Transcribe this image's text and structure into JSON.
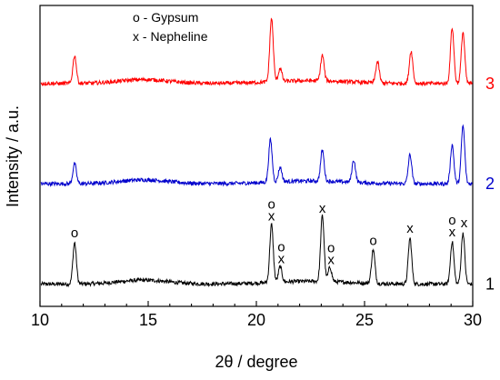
{
  "chart_data": {
    "type": "line",
    "title": "",
    "xlabel": "2θ / degree",
    "ylabel": "Intensity / a.u.",
    "xlim": [
      10,
      30
    ],
    "xticks": [
      10,
      15,
      20,
      25,
      30
    ],
    "yticks_shown": false,
    "grid": false,
    "legend": {
      "placement": "top-left",
      "entries": [
        "o - Gypsum",
        "x - Nepheline"
      ]
    },
    "series": [
      {
        "name": "1",
        "color": "#000000",
        "baseline": 0,
        "peaks": [
          {
            "x": 11.6,
            "h": 3.7
          },
          {
            "x": 20.7,
            "h": 5.2
          },
          {
            "x": 21.1,
            "h": 1.4
          },
          {
            "x": 23.05,
            "h": 5.9
          },
          {
            "x": 23.4,
            "h": 1.3
          },
          {
            "x": 25.4,
            "h": 3.0
          },
          {
            "x": 27.1,
            "h": 4.1
          },
          {
            "x": 29.05,
            "h": 3.8
          },
          {
            "x": 29.55,
            "h": 4.6
          }
        ]
      },
      {
        "name": "2",
        "color": "#0000cc",
        "baseline": 9,
        "peaks": [
          {
            "x": 11.6,
            "h": 1.8
          },
          {
            "x": 20.65,
            "h": 3.8
          },
          {
            "x": 21.1,
            "h": 1.3
          },
          {
            "x": 23.05,
            "h": 2.8
          },
          {
            "x": 24.5,
            "h": 2.0
          },
          {
            "x": 27.1,
            "h": 2.6
          },
          {
            "x": 29.05,
            "h": 3.5
          },
          {
            "x": 29.55,
            "h": 5.2
          }
        ]
      },
      {
        "name": "3",
        "color": "#ff0000",
        "baseline": 18,
        "peaks": [
          {
            "x": 11.6,
            "h": 2.5
          },
          {
            "x": 20.7,
            "h": 5.7
          },
          {
            "x": 21.1,
            "h": 1.2
          },
          {
            "x": 23.05,
            "h": 2.3
          },
          {
            "x": 25.6,
            "h": 1.9
          },
          {
            "x": 27.15,
            "h": 2.9
          },
          {
            "x": 29.05,
            "h": 5.0
          },
          {
            "x": 29.55,
            "h": 4.6
          }
        ]
      }
    ],
    "annotations": [
      {
        "x": 11.6,
        "marks": [
          "o"
        ]
      },
      {
        "x": 20.7,
        "marks": [
          "o",
          "x"
        ]
      },
      {
        "x": 21.15,
        "marks": [
          "o",
          "x"
        ]
      },
      {
        "x": 23.05,
        "marks": [
          "x"
        ]
      },
      {
        "x": 23.45,
        "marks": [
          "o",
          "x"
        ]
      },
      {
        "x": 25.4,
        "marks": [
          "o"
        ]
      },
      {
        "x": 27.1,
        "marks": [
          "x"
        ]
      },
      {
        "x": 29.05,
        "marks": [
          "o",
          "x"
        ]
      },
      {
        "x": 29.6,
        "marks": [
          "x"
        ]
      }
    ]
  }
}
